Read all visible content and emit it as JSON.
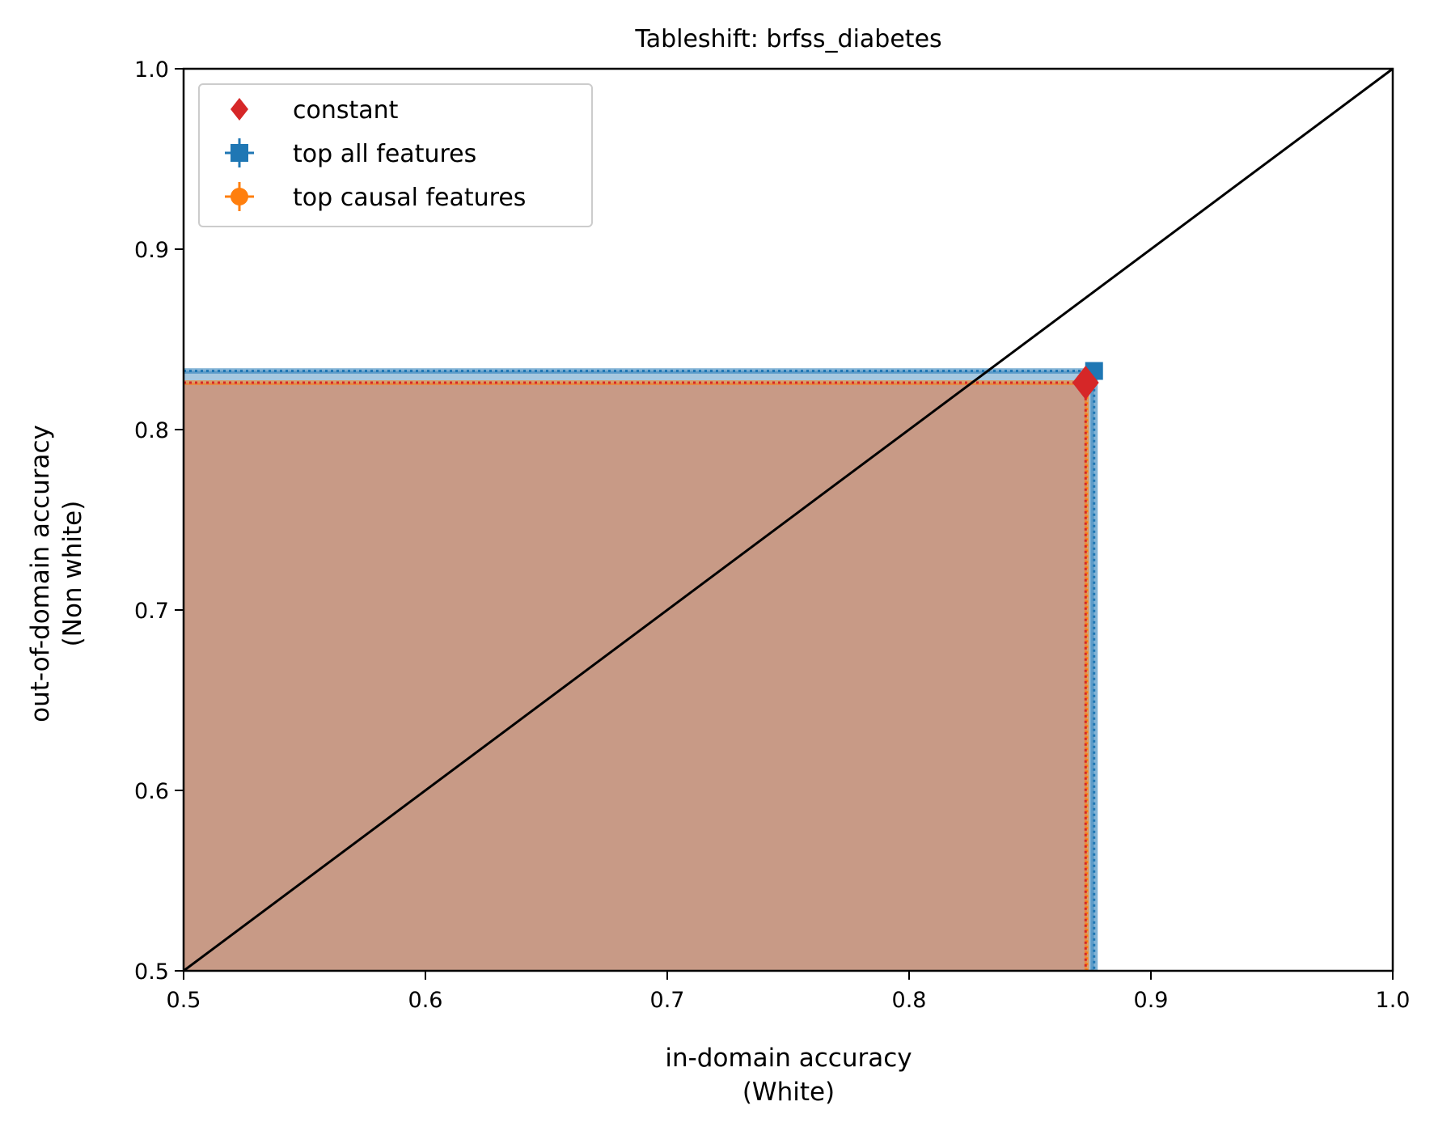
{
  "chart_data": {
    "type": "scatter",
    "title": "Tableshift: brfss_diabetes",
    "xlabel": [
      "in-domain accuracy",
      "(White)"
    ],
    "ylabel": [
      "out-of-domain accuracy",
      "(Non white)"
    ],
    "xlim": [
      0.5,
      1.0
    ],
    "ylim": [
      0.5,
      1.0
    ],
    "xticks": [
      0.5,
      0.6,
      0.7,
      0.8,
      0.9,
      1.0
    ],
    "xtick_labels": [
      "0.5",
      "0.6",
      "0.7",
      "0.8",
      "0.9",
      "1.0"
    ],
    "yticks": [
      0.5,
      0.6,
      0.7,
      0.8,
      0.9,
      1.0
    ],
    "ytick_labels": [
      "0.5",
      "0.6",
      "0.7",
      "0.8",
      "0.9",
      "1.0"
    ],
    "grid": false,
    "legend_position": "top-left",
    "diagonal": {
      "from": [
        0.5,
        0.5
      ],
      "to": [
        1.0,
        1.0
      ],
      "color": "#000000"
    },
    "series": [
      {
        "name": "constant",
        "marker": "diamond",
        "color": "#d62728",
        "x": 0.873,
        "y": 0.826
      },
      {
        "name": "top all features",
        "marker": "square",
        "color": "#1f77b4",
        "x": 0.8765,
        "y": 0.8325,
        "x_err": 0.0015,
        "y_err": 0.0015,
        "shade": "#a6c8e0"
      },
      {
        "name": "top causal features",
        "marker": "circle",
        "color": "#ff7f0e",
        "x": 0.8735,
        "y": 0.826,
        "x_err": 0.001,
        "y_err": 0.001,
        "shade": "#ffbf86"
      }
    ],
    "overlap_fill_color": "#c89a86"
  }
}
